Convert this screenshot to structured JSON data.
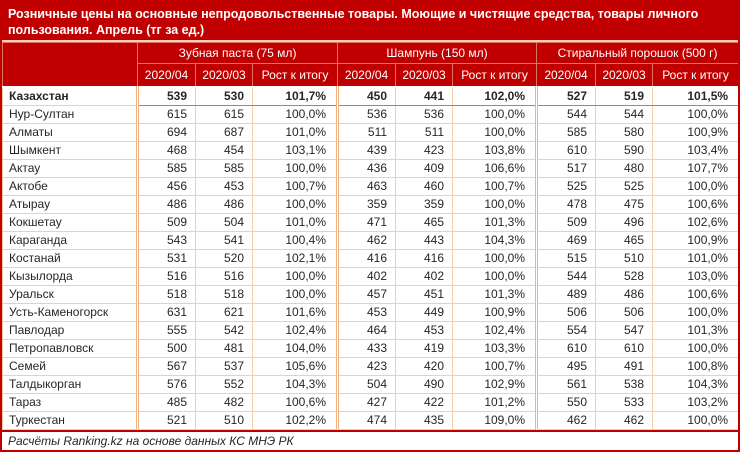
{
  "title": "Розничные цены на основные непродовольственные товары. Моющие и чистящие средства, товары личного пользования. Апрель (тг за ед.)",
  "footer": "Расчёты Ranking.kz на основе данных КС МНЭ РК",
  "colors": {
    "dark_red": "#C00000",
    "header_divider": "#E0745F",
    "grid_line": "#F8CBAD",
    "bold_row_underline": "#8C8C8C",
    "text": "#262626",
    "header_text": "#FFFFFF"
  },
  "chart_data": {
    "type": "table",
    "title": "Розничные цены на основные непродовольственные товары. Моющие и чистящие средства, товары личного пользования. Апрель (тг за ед.)",
    "column_groups": [
      "Зубная паста (75 мл)",
      "Шампунь (150 мл)",
      "Стиральный порошок (500 г)"
    ],
    "sub_columns": [
      "2020/04",
      "2020/03",
      "Рост к итогу"
    ],
    "rows": [
      {
        "region": "Казахстан",
        "bold": true,
        "values": [
          [
            "539",
            "530",
            "101,7%"
          ],
          [
            "450",
            "441",
            "102,0%"
          ],
          [
            "527",
            "519",
            "101,5%"
          ]
        ]
      },
      {
        "region": "Нур-Султан",
        "bold": false,
        "values": [
          [
            "615",
            "615",
            "100,0%"
          ],
          [
            "536",
            "536",
            "100,0%"
          ],
          [
            "544",
            "544",
            "100,0%"
          ]
        ]
      },
      {
        "region": "Алматы",
        "bold": false,
        "values": [
          [
            "694",
            "687",
            "101,0%"
          ],
          [
            "511",
            "511",
            "100,0%"
          ],
          [
            "585",
            "580",
            "100,9%"
          ]
        ]
      },
      {
        "region": "Шымкент",
        "bold": false,
        "values": [
          [
            "468",
            "454",
            "103,1%"
          ],
          [
            "439",
            "423",
            "103,8%"
          ],
          [
            "610",
            "590",
            "103,4%"
          ]
        ]
      },
      {
        "region": "Актау",
        "bold": false,
        "values": [
          [
            "585",
            "585",
            "100,0%"
          ],
          [
            "436",
            "409",
            "106,6%"
          ],
          [
            "517",
            "480",
            "107,7%"
          ]
        ]
      },
      {
        "region": "Актобе",
        "bold": false,
        "values": [
          [
            "456",
            "453",
            "100,7%"
          ],
          [
            "463",
            "460",
            "100,7%"
          ],
          [
            "525",
            "525",
            "100,0%"
          ]
        ]
      },
      {
        "region": "Атырау",
        "bold": false,
        "values": [
          [
            "486",
            "486",
            "100,0%"
          ],
          [
            "359",
            "359",
            "100,0%"
          ],
          [
            "478",
            "475",
            "100,6%"
          ]
        ]
      },
      {
        "region": "Кокшетау",
        "bold": false,
        "values": [
          [
            "509",
            "504",
            "101,0%"
          ],
          [
            "471",
            "465",
            "101,3%"
          ],
          [
            "509",
            "496",
            "102,6%"
          ]
        ]
      },
      {
        "region": "Караганда",
        "bold": false,
        "values": [
          [
            "543",
            "541",
            "100,4%"
          ],
          [
            "462",
            "443",
            "104,3%"
          ],
          [
            "469",
            "465",
            "100,9%"
          ]
        ]
      },
      {
        "region": "Костанай",
        "bold": false,
        "values": [
          [
            "531",
            "520",
            "102,1%"
          ],
          [
            "416",
            "416",
            "100,0%"
          ],
          [
            "515",
            "510",
            "101,0%"
          ]
        ]
      },
      {
        "region": "Кызылорда",
        "bold": false,
        "values": [
          [
            "516",
            "516",
            "100,0%"
          ],
          [
            "402",
            "402",
            "100,0%"
          ],
          [
            "544",
            "528",
            "103,0%"
          ]
        ]
      },
      {
        "region": "Уральск",
        "bold": false,
        "values": [
          [
            "518",
            "518",
            "100,0%"
          ],
          [
            "457",
            "451",
            "101,3%"
          ],
          [
            "489",
            "486",
            "100,6%"
          ]
        ]
      },
      {
        "region": "Усть-Каменогорск",
        "bold": false,
        "values": [
          [
            "631",
            "621",
            "101,6%"
          ],
          [
            "453",
            "449",
            "100,9%"
          ],
          [
            "506",
            "506",
            "100,0%"
          ]
        ]
      },
      {
        "region": "Павлодар",
        "bold": false,
        "values": [
          [
            "555",
            "542",
            "102,4%"
          ],
          [
            "464",
            "453",
            "102,4%"
          ],
          [
            "554",
            "547",
            "101,3%"
          ]
        ]
      },
      {
        "region": "Петропавловск",
        "bold": false,
        "values": [
          [
            "500",
            "481",
            "104,0%"
          ],
          [
            "433",
            "419",
            "103,3%"
          ],
          [
            "610",
            "610",
            "100,0%"
          ]
        ]
      },
      {
        "region": "Семей",
        "bold": false,
        "values": [
          [
            "567",
            "537",
            "105,6%"
          ],
          [
            "423",
            "420",
            "100,7%"
          ],
          [
            "495",
            "491",
            "100,8%"
          ]
        ]
      },
      {
        "region": "Талдыкорган",
        "bold": false,
        "values": [
          [
            "576",
            "552",
            "104,3%"
          ],
          [
            "504",
            "490",
            "102,9%"
          ],
          [
            "561",
            "538",
            "104,3%"
          ]
        ]
      },
      {
        "region": "Тараз",
        "bold": false,
        "values": [
          [
            "485",
            "482",
            "100,6%"
          ],
          [
            "427",
            "422",
            "101,2%"
          ],
          [
            "550",
            "533",
            "103,2%"
          ]
        ]
      },
      {
        "region": "Туркестан",
        "bold": false,
        "values": [
          [
            "521",
            "510",
            "102,2%"
          ],
          [
            "474",
            "435",
            "109,0%"
          ],
          [
            "462",
            "462",
            "100,0%"
          ]
        ]
      }
    ],
    "source_note": "Расчёты Ranking.kz на основе данных КС МНЭ РК"
  }
}
